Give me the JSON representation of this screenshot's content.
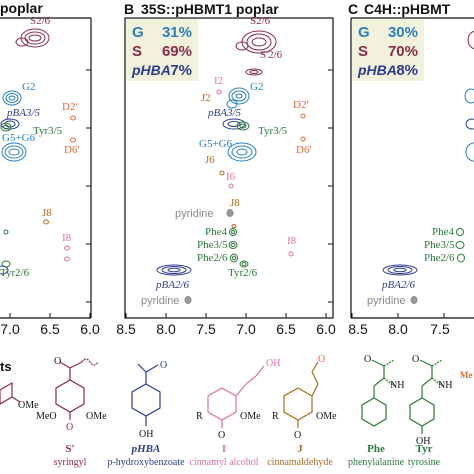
{
  "panels": [
    {
      "id": "A",
      "letter": "",
      "title": "poplar",
      "legend": [],
      "x_ticks": [
        "7.0",
        "6.5",
        "6.0"
      ],
      "labels": [
        {
          "key": "S26",
          "text": "S2/6",
          "color": "#8c2a4a"
        },
        {
          "key": "G2",
          "text": "G2",
          "color": "#2a7fc0"
        },
        {
          "key": "pBA35",
          "text": "pBA3/5",
          "color": "#2c3d8f"
        },
        {
          "key": "G5G6",
          "text": "G5+G6",
          "color": "#2a7fc0"
        },
        {
          "key": "Tyr35",
          "text": "Tyr3/5",
          "color": "#2a7a3a"
        },
        {
          "key": "D2",
          "text": "D2'",
          "color": "#e06a30"
        },
        {
          "key": "D6",
          "text": "D6'",
          "color": "#e06a30"
        },
        {
          "key": "J8",
          "text": "J8",
          "color": "#b06a1a"
        },
        {
          "key": "I8",
          "text": "I8",
          "color": "#e070a8"
        },
        {
          "key": "Tyr26",
          "text": "Tyr2/6",
          "color": "#2a7a3a"
        }
      ]
    },
    {
      "id": "B",
      "letter": "B",
      "title": "35S::pHBMT1 poplar",
      "legend": [
        {
          "key": "G",
          "label": "G",
          "value": "31%",
          "color": "#2a7fc0"
        },
        {
          "key": "S",
          "label": "S",
          "value": "69%",
          "color": "#8c2a4a"
        },
        {
          "key": "pHBA",
          "label": "pHBA",
          "value": "7%",
          "color": "#2c3d8f"
        }
      ],
      "x_ticks": [
        "8.5",
        "8.0",
        "7.5",
        "7.0",
        "6.5",
        "6.0"
      ],
      "labels": [
        {
          "key": "S26",
          "text": "S2/6",
          "color": "#8c2a4a"
        },
        {
          "key": "S26p",
          "text": "S'2/6",
          "color": "#8c2a4a"
        },
        {
          "key": "I2",
          "text": "I2",
          "color": "#e070a8"
        },
        {
          "key": "J2",
          "text": "J2",
          "color": "#b06a1a"
        },
        {
          "key": "G2",
          "text": "G2",
          "color": "#2a7fc0"
        },
        {
          "key": "D2",
          "text": "D2'",
          "color": "#e06a30"
        },
        {
          "key": "pBA35",
          "text": "pBA3/5",
          "color": "#2c3d8f"
        },
        {
          "key": "G5G6",
          "text": "G5+G6",
          "color": "#2a7fc0"
        },
        {
          "key": "Tyr35",
          "text": "Tyr3/5",
          "color": "#2a7a3a"
        },
        {
          "key": "D6",
          "text": "D6'",
          "color": "#e06a30"
        },
        {
          "key": "J6",
          "text": "J6",
          "color": "#b06a1a"
        },
        {
          "key": "I6",
          "text": "I6",
          "color": "#e070a8"
        },
        {
          "key": "pyridine1",
          "text": "pyridine",
          "color": "#8a8a8a"
        },
        {
          "key": "J8",
          "text": "J8",
          "color": "#b06a1a"
        },
        {
          "key": "Phe4",
          "text": "Phe4",
          "color": "#2a7a3a"
        },
        {
          "key": "I8",
          "text": "I8",
          "color": "#e070a8"
        },
        {
          "key": "Phe35",
          "text": "Phe3/5",
          "color": "#2a7a3a"
        },
        {
          "key": "Phe26",
          "text": "Phe2/6",
          "color": "#2a7a3a"
        },
        {
          "key": "Tyr26",
          "text": "Tyr2/6",
          "color": "#2a7a3a"
        },
        {
          "key": "pBA26",
          "text": "pBA2/6",
          "color": "#2c3d8f"
        },
        {
          "key": "pyridine2",
          "text": "pyridine",
          "color": "#8a8a8a"
        }
      ]
    },
    {
      "id": "C",
      "letter": "C",
      "title": "C4H::pHBMT",
      "legend": [
        {
          "key": "G",
          "label": "G",
          "value": "30%",
          "color": "#2a7fc0"
        },
        {
          "key": "S",
          "label": "S",
          "value": "70%",
          "color": "#8c2a4a"
        },
        {
          "key": "pHBA",
          "label": "pHBA",
          "value": "8%",
          "color": "#2c3d8f"
        }
      ],
      "x_ticks": [
        "8.5",
        "8.0",
        "7.5"
      ],
      "labels": [
        {
          "key": "Phe4",
          "text": "Phe4",
          "color": "#2a7a3a"
        },
        {
          "key": "Phe35",
          "text": "Phe3/5",
          "color": "#2a7a3a"
        },
        {
          "key": "Phe26",
          "text": "Phe2/6",
          "color": "#2a7a3a"
        },
        {
          "key": "pBA26",
          "text": "pBA2/6",
          "color": "#2c3d8f"
        },
        {
          "key": "pyridine",
          "text": "pyridine",
          "color": "#8a8a8a"
        }
      ]
    }
  ],
  "structures_header": "ts",
  "structures": [
    {
      "key": "S",
      "name": "",
      "caption": "",
      "color": "#8c2a4a",
      "atoms": [
        "MeO",
        "OMe"
      ]
    },
    {
      "key": "Sp",
      "name": "S'",
      "caption": "syringyl",
      "color": "#8c2a4a",
      "atoms": [
        "MeO",
        "OMe",
        "O"
      ]
    },
    {
      "key": "pHBA",
      "name": "pHBA",
      "caption": "p-hydroxybenzoate",
      "color": "#2c3d8f",
      "atoms": [
        "OH",
        "O"
      ]
    },
    {
      "key": "I",
      "name": "I",
      "caption": "cinnamyl alcohol",
      "color": "#e070a8",
      "atoms": [
        "OH",
        "R",
        "OMe",
        "O"
      ]
    },
    {
      "key": "J",
      "name": "J",
      "caption": "cinnamaldehyde",
      "color": "#b06a1a",
      "atoms": [
        "O",
        "R",
        "OMe",
        "O"
      ]
    },
    {
      "key": "Phe",
      "name": "Phe",
      "caption": "phenylalanine",
      "color": "#2a7a3a",
      "atoms": [
        "O",
        "NH"
      ]
    },
    {
      "key": "Tyr",
      "name": "Tyr",
      "caption": "tyrosine",
      "color": "#2a7a3a",
      "atoms": [
        "O",
        "NH",
        "OH"
      ]
    },
    {
      "key": "Me",
      "name": "",
      "caption": "",
      "color": "#e06a30",
      "atoms": [
        "Me"
      ]
    }
  ]
}
